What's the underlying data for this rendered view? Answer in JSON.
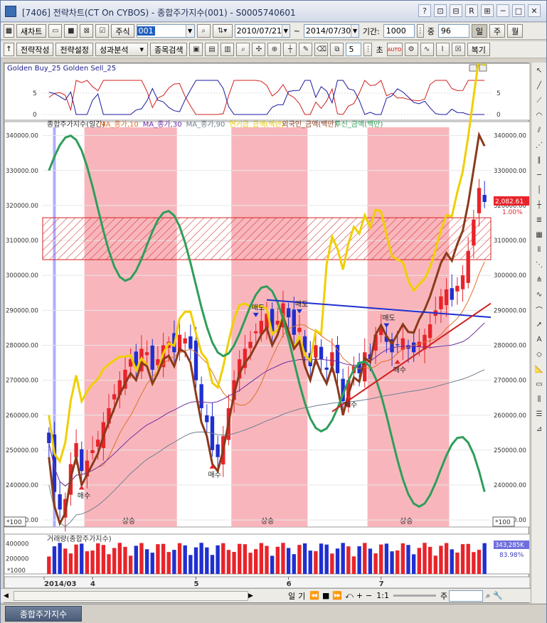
{
  "window": {
    "title": "[7406] 전략차트(CT On CYBOS) - 종합주가지수(001) - S0005740601",
    "title_icons": [
      "?",
      "⊡",
      "⊟",
      "R",
      "⊞"
    ],
    "control_icons": [
      "─",
      "□",
      "✕"
    ]
  },
  "toolbar1": {
    "new_chart": "새차트",
    "market": "주식",
    "code": "001",
    "start_date": "2010/07/21",
    "tilde": "~",
    "end_date": "2014/07/30",
    "period_label": "기간:",
    "period": "1000",
    "count_label": "중",
    "count": "96",
    "day": "일",
    "week": "주",
    "month": "월"
  },
  "toolbar2": {
    "strategy_write": "전략작성",
    "strategy_settings": "전략설정",
    "performance": "성과분석",
    "item_search": "종목검색",
    "seconds_value": "5",
    "seconds_label": "초",
    "auto": "AUTO",
    "restore": "복기"
  },
  "oscillator": {
    "title": "Golden Buy_25  Golden Sell_25",
    "left_ticks": [
      "5",
      "0"
    ],
    "right_ticks": [
      "5",
      "0"
    ]
  },
  "price_panel": {
    "legend": [
      {
        "text": "종합주가지수(일간)",
        "color": "#333333"
      },
      {
        "text": "MA_종가,10",
        "color": "#e0702a"
      },
      {
        "text": "MA_종가,30",
        "color": "#7030a0"
      },
      {
        "text": "MA_종가,90",
        "color": "#708090"
      },
      {
        "text": "연기금_금액(백만)",
        "color": "#e8c400"
      },
      {
        "text": "외국인_금액(백만)",
        "color": "#8b3a1a"
      },
      {
        "text": "투신_금액(백만)",
        "color": "#2e9e5a"
      }
    ],
    "y_ticks": [
      "340000.00",
      "330000.00",
      "320000.00",
      "310000.00",
      "300000.00",
      "290000.00",
      "280000.00",
      "270000.00",
      "260000.00",
      "250000.00",
      "240000.00",
      "230000.00"
    ],
    "right_ticks": [
      "340000.00",
      "330000.00",
      "320000.00",
      "310000.00",
      "300000.00",
      "290000.00",
      "280000.00",
      "270000.00",
      "260000.00",
      "250000.00",
      "240000.00",
      "230000.00"
    ],
    "current_value": "2,082.61",
    "current_pct": "1.00%",
    "scale_label": "*100",
    "zone_label": "상승",
    "buy_label": "매수",
    "sell_label": "매도"
  },
  "volume_panel": {
    "title": "거래량(종합주가지수)",
    "y_ticks": [
      "400000",
      "200000"
    ],
    "scale_label": "*1000",
    "current_value": "343,285K",
    "current_pct": "83.98%"
  },
  "x_axis": {
    "labels": [
      "2014/03",
      "4",
      "5",
      "6",
      "7"
    ]
  },
  "bottom_nav": {
    "labels": [
      "일",
      "기"
    ],
    "ratio": "1:1",
    "week": "주"
  },
  "tabs": [
    {
      "label": "종합주가지수"
    }
  ],
  "colors": {
    "up": "#e8242a",
    "down": "#1f2fd0",
    "zone": "#f7a9b0",
    "hatch": "#d02020"
  },
  "chart_data": {
    "type": "candlestick",
    "ylim": [
      228000,
      344000
    ],
    "zones": [
      [
        7,
        23
      ],
      [
        34,
        47
      ],
      [
        59,
        73
      ]
    ],
    "closes": [
      252000,
      238000,
      233000,
      236000,
      246000,
      252000,
      244000,
      247000,
      250000,
      253000,
      258000,
      262000,
      266000,
      270000,
      273000,
      276000,
      274000,
      279000,
      278000,
      273000,
      276000,
      280000,
      281000,
      278000,
      283000,
      282000,
      279000,
      270000,
      262000,
      258000,
      250000,
      248000,
      254000,
      262000,
      270000,
      276000,
      279000,
      281000,
      284000,
      287000,
      289000,
      284000,
      287000,
      292000,
      288000,
      283000,
      285000,
      278000,
      274000,
      280000,
      276000,
      273000,
      278000,
      272000,
      264000,
      270000,
      274000,
      272000,
      278000,
      276000,
      283000,
      285000,
      281000,
      278000,
      280000,
      282000,
      279000,
      278000,
      281000,
      283000,
      286000,
      290000,
      294000,
      296000,
      293000,
      297000,
      300000,
      307000,
      316000,
      325000,
      321000
    ]
  }
}
